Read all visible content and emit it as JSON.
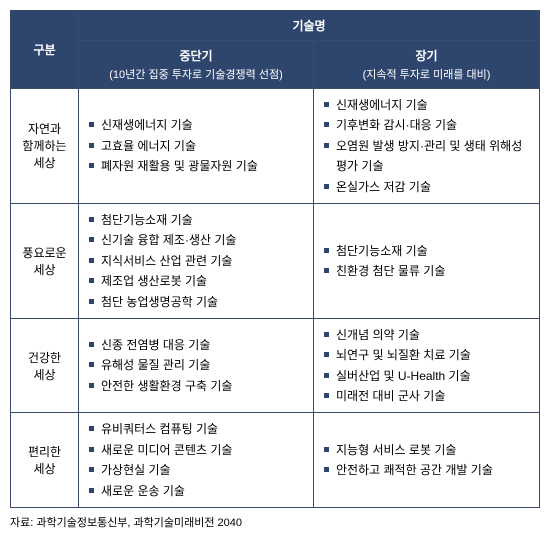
{
  "colors": {
    "header_bg": "#2e466e",
    "header_text": "#ffffff",
    "border": "#3b4a6b",
    "bullet": "#2e466e",
    "body_text": "#000000",
    "bg": "#ffffff"
  },
  "header": {
    "col1": "구분",
    "col_group": "기술명",
    "mid": "중단기",
    "mid_sub": "(10년간 집중 투자로 기술경쟁력 선점)",
    "long": "장기",
    "long_sub": "(지속적 투자로 미래를 대비)"
  },
  "rows": [
    {
      "label": "자연과\n함께하는\n세상",
      "mid": [
        "신재생에너지 기술",
        "고효율 에너지 기술",
        "폐자원 재활용 및 광물자원 기술"
      ],
      "long": [
        "신재생에너지 기술",
        "기후변화 감시·대응 기술",
        "오염원 발생 방지·관리 및 생태 위해성 평가 기술",
        "온실가스 저감 기술"
      ]
    },
    {
      "label": "풍요로운\n세상",
      "mid": [
        "첨단기능소재 기술",
        "신기술 융합 제조·생산 기술",
        "지식서비스 산업 관련 기술",
        "제조업 생산로봇 기술",
        "첨단 농업생명공학 기술"
      ],
      "long": [
        "첨단기능소재 기술",
        "친환경 첨단 물류 기술"
      ]
    },
    {
      "label": "건강한\n세상",
      "mid": [
        "신종 전염병 대응 기술",
        "유해성 물질 관리 기술",
        "안전한 생활환경 구축 기술"
      ],
      "long": [
        "신개념 의약 기술",
        "뇌연구 및 뇌질환 치료 기술",
        "실버산업 및 U-Health 기술",
        "미래전 대비 군사 기술"
      ]
    },
    {
      "label": "편리한\n세상",
      "mid": [
        "유비쿼터스 컴퓨팅 기술",
        "새로운 미디어 콘텐츠 기술",
        "가상현실 기술",
        "새로운 운송 기술"
      ],
      "long": [
        "지능형 서비스 로봇 기술",
        "안전하고 쾌적한 공간 개발 기술"
      ]
    }
  ],
  "source": "자료: 과학기술정보통신부, 과학기술미래비전 2040"
}
